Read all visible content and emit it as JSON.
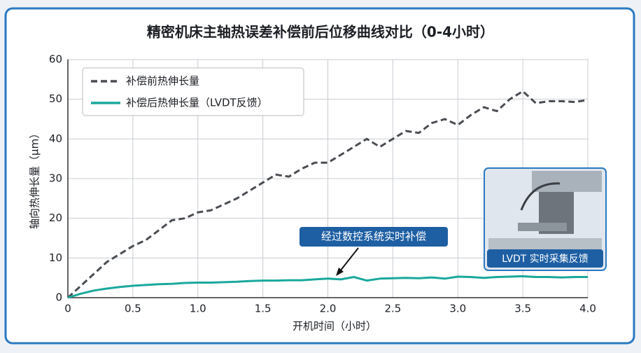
{
  "chart_data": {
    "type": "line",
    "title": "精密机床主轴热误差补偿前后位移曲线对比（0-4小时）",
    "x_label": "开机时间（小时）",
    "y_label": "轴向热伸长量（μm）",
    "x": [
      0,
      0.1,
      0.2,
      0.3,
      0.4,
      0.5,
      0.6,
      0.7,
      0.8,
      0.9,
      1.0,
      1.1,
      1.2,
      1.3,
      1.4,
      1.5,
      1.6,
      1.7,
      1.8,
      1.9,
      2.0,
      2.1,
      2.2,
      2.3,
      2.4,
      2.5,
      2.6,
      2.7,
      2.8,
      2.9,
      3.0,
      3.1,
      3.2,
      3.3,
      3.4,
      3.5,
      3.6,
      3.7,
      3.8,
      3.9,
      4.0
    ],
    "series": [
      {
        "name": "补偿前热伸长量",
        "color": "#4a4d52",
        "dashed": true,
        "values": [
          0,
          3,
          6,
          9,
          11,
          13,
          14.5,
          17,
          19.5,
          20,
          21.5,
          22,
          23.5,
          25,
          27,
          29,
          31,
          30.5,
          32.5,
          34,
          34,
          36,
          38,
          40,
          38,
          40,
          42,
          41.5,
          44,
          45,
          43.5,
          46,
          48,
          47,
          50,
          52,
          49,
          49.5,
          49.5,
          49.3,
          49.8
        ]
      },
      {
        "name": "补偿后热伸长量（LVDT反馈）",
        "color": "#1aa89c",
        "dashed": false,
        "values": [
          0,
          1,
          1.8,
          2.3,
          2.7,
          3,
          3.2,
          3.4,
          3.5,
          3.7,
          3.8,
          3.8,
          3.9,
          4.0,
          4.2,
          4.3,
          4.3,
          4.4,
          4.4,
          4.6,
          4.8,
          4.6,
          5.2,
          4.3,
          4.8,
          4.9,
          5.0,
          4.9,
          5.1,
          4.8,
          5.3,
          5.2,
          5.0,
          5.2,
          5.3,
          5.4,
          5.2,
          5.2,
          5.1,
          5.2,
          5.2
        ]
      }
    ],
    "xlim": [
      0,
      4
    ],
    "xticks": [
      0,
      0.5,
      {
        "value": 1,
        "label": "1.0"
      },
      1.5,
      {
        "value": 2,
        "label": "2.0"
      },
      2.5,
      {
        "value": 3,
        "label": "3.0"
      },
      3.5,
      {
        "value": 4,
        "label": "4.0"
      }
    ],
    "ylim": [
      0,
      60
    ],
    "yticks": [
      0,
      10,
      20,
      30,
      40,
      50,
      60
    ],
    "grid": true,
    "legend": "upper left",
    "annotation": "经过数控系统实时补偿",
    "inset_caption": "LVDT 实时采集反馈"
  }
}
